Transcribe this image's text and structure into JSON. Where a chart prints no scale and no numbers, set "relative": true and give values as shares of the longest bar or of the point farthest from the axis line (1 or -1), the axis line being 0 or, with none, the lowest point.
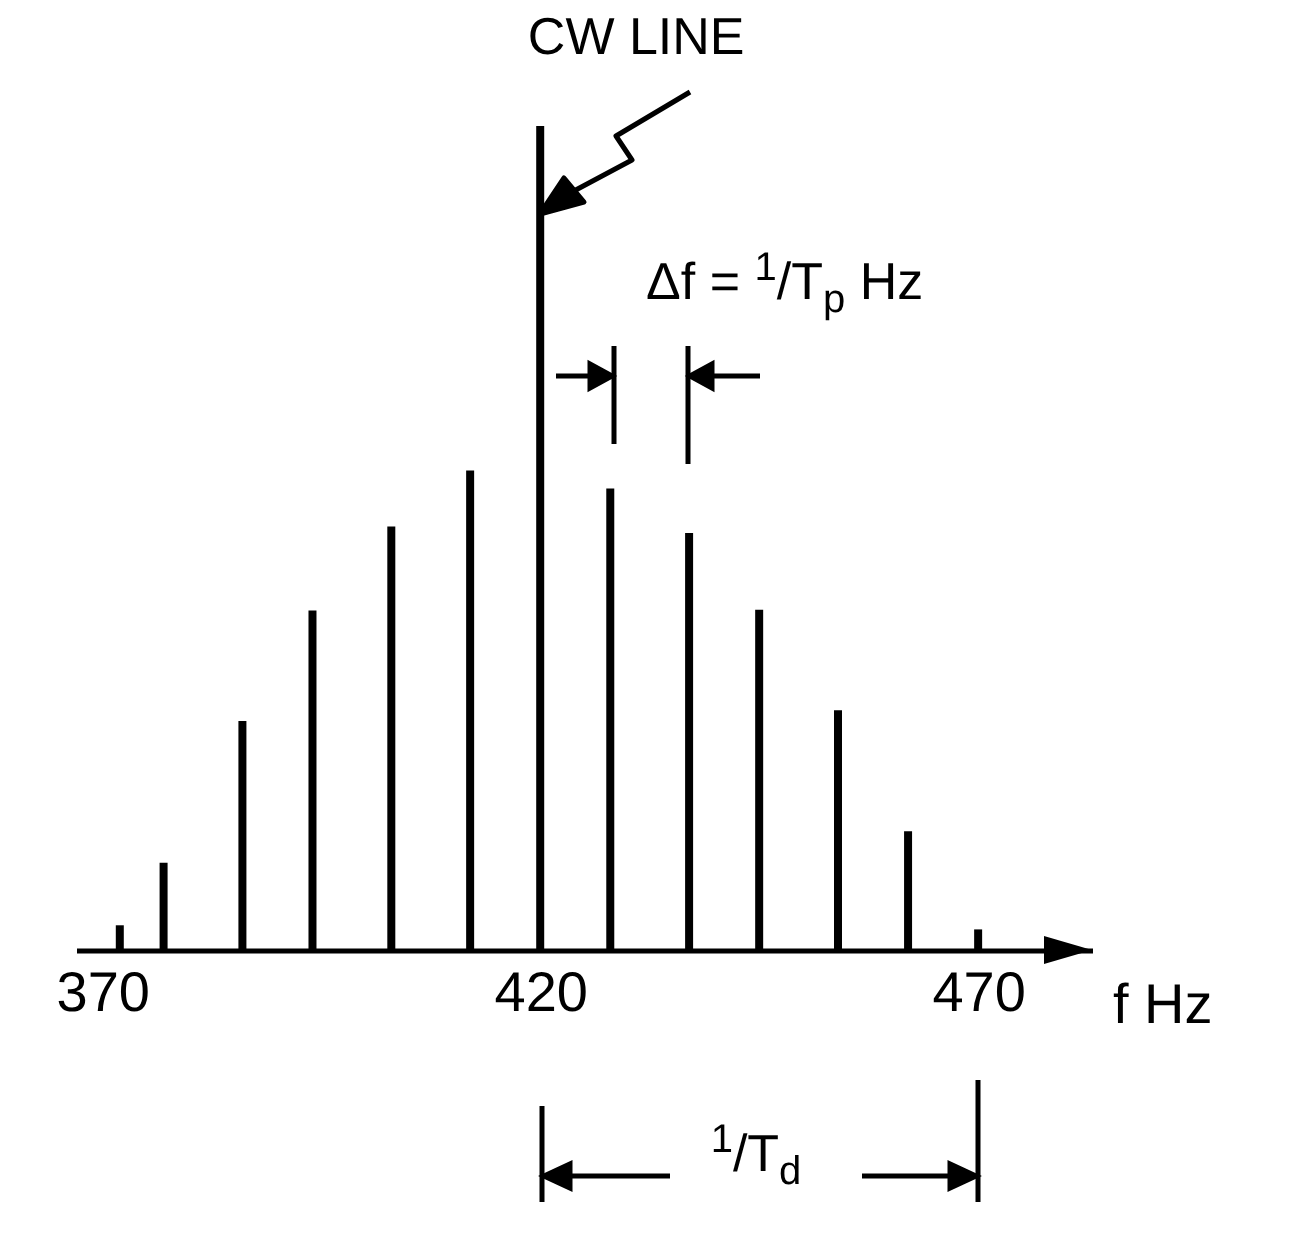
{
  "chart_data": {
    "type": "bar",
    "relative": true,
    "xlabel": "f Hz",
    "color": "#000000",
    "x": [
      372,
      377,
      386,
      394,
      403,
      412,
      420,
      428,
      437,
      445,
      454,
      462,
      470
    ],
    "values": [
      0.03,
      0.106,
      0.278,
      0.412,
      0.514,
      0.582,
      1,
      0.56,
      0.506,
      0.413,
      0.291,
      0.144,
      0.025
    ],
    "xlim": [
      367,
      483
    ],
    "xticks": [
      370,
      420,
      470
    ],
    "annotations": [
      {
        "text": "CW LINE",
        "x": 420,
        "y": 0.9
      },
      "Δf = $^{1}$/T$_{p}$ Hz",
      "$^{1}$/T$_{d}$"
    ]
  }
}
